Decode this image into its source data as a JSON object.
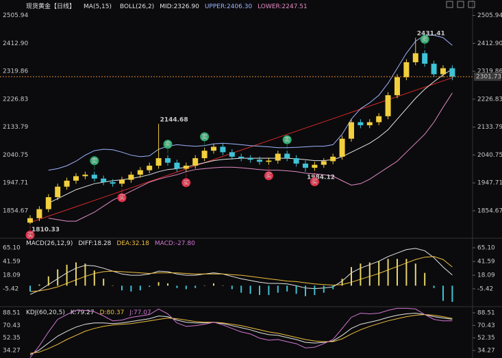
{
  "chart_data": [
    {
      "type": "candlestick",
      "title": "现货黄金【日线】",
      "indicators": [
        "MA(5,15)",
        "BOLL(26,2)"
      ],
      "up_color": "#f2cf3d",
      "down_color": "#3fc3d6",
      "open": [
        1815,
        1830,
        1860,
        1900,
        1935,
        1955,
        1970,
        1975,
        1962,
        1950,
        1945,
        1958,
        1975,
        1990,
        2005,
        2030,
        2015,
        1995,
        2005,
        2030,
        2055,
        2068,
        2050,
        2035,
        2030,
        2025,
        2018,
        2022,
        2045,
        2030,
        2012,
        1998,
        2008,
        2020,
        2035,
        2095,
        2150,
        2140,
        2150,
        2170,
        2240,
        2300,
        2350,
        2380,
        2345,
        2310,
        2330
      ],
      "high": [
        1840,
        1870,
        1910,
        1945,
        1965,
        1980,
        1985,
        1985,
        1972,
        1960,
        1968,
        1985,
        2000,
        2015,
        2144.68,
        2040,
        2025,
        2015,
        2040,
        2065,
        2078,
        2078,
        2060,
        2045,
        2040,
        2035,
        2032,
        2055,
        2055,
        2040,
        2022,
        2018,
        2030,
        2045,
        2105,
        2160,
        2160,
        2160,
        2180,
        2250,
        2310,
        2360,
        2431.41,
        2390,
        2355,
        2340,
        2340
      ],
      "low": [
        1810.33,
        1820,
        1850,
        1890,
        1925,
        1945,
        1960,
        1952,
        1940,
        1935,
        1935,
        1948,
        1965,
        1980,
        1995,
        2005,
        1985,
        1985,
        1995,
        2020,
        2045,
        2040,
        2025,
        2020,
        2015,
        2008,
        2008,
        2012,
        2020,
        2002,
        1984.12,
        1988,
        1998,
        2010,
        2025,
        2085,
        2130,
        2130,
        2140,
        2160,
        2230,
        2290,
        2340,
        2335,
        2300,
        2300,
        2290
      ],
      "close": [
        1830,
        1860,
        1900,
        1935,
        1955,
        1970,
        1975,
        1962,
        1950,
        1945,
        1958,
        1975,
        1990,
        2005,
        2030,
        2015,
        1995,
        2005,
        2030,
        2055,
        2068,
        2050,
        2035,
        2030,
        2025,
        2018,
        2022,
        2045,
        2030,
        2012,
        1998,
        2008,
        2020,
        2035,
        2095,
        2150,
        2140,
        2150,
        2170,
        2240,
        2300,
        2350,
        2380,
        2345,
        2310,
        2330,
        2301.73
      ],
      "series": [
        {
          "name": "MID:2326.90",
          "color": "#e6e6e6",
          "values": [
            null,
            null,
            1880,
            1895,
            1910,
            1925,
            1935,
            1945,
            1950,
            1955,
            1958,
            1962,
            1968,
            1975,
            1985,
            1992,
            1995,
            2000,
            2008,
            2015,
            2022,
            2026,
            2028,
            2030,
            2030,
            2030,
            2030,
            2030,
            2030,
            2028,
            2025,
            2022,
            2022,
            2025,
            2035,
            2050,
            2065,
            2080,
            2100,
            2125,
            2160,
            2195,
            2230,
            2260,
            2285,
            2308,
            2326.9
          ]
        },
        {
          "name": "UPPER:2406.30",
          "color": "#9fb4ff",
          "values": [
            null,
            null,
            1990,
            1995,
            2005,
            2020,
            2040,
            2055,
            2060,
            2058,
            2050,
            2040,
            2035,
            2038,
            2060,
            2070,
            2075,
            2072,
            2070,
            2072,
            2078,
            2080,
            2078,
            2075,
            2072,
            2070,
            2068,
            2065,
            2065,
            2066,
            2068,
            2070,
            2070,
            2075,
            2110,
            2160,
            2195,
            2215,
            2240,
            2280,
            2330,
            2380,
            2420,
            2440,
            2440,
            2432,
            2406.3
          ]
        },
        {
          "name": "LOWER:2247.51",
          "color": "#e48cc6",
          "values": [
            null,
            null,
            1830,
            1825,
            1820,
            1820,
            1835,
            1850,
            1870,
            1890,
            1905,
            1920,
            1935,
            1950,
            1960,
            1968,
            1975,
            1985,
            1992,
            1995,
            1998,
            2000,
            2000,
            1998,
            1995,
            1992,
            1990,
            1990,
            1988,
            1985,
            1980,
            1978,
            1975,
            1970,
            1955,
            1940,
            1945,
            1960,
            1980,
            2000,
            2020,
            2050,
            2080,
            2110,
            2150,
            2200,
            2247.51
          ]
        }
      ],
      "current_price": 2301.73,
      "current_color": "#e08a2c",
      "buy_label": "买",
      "sell_label": "卖",
      "ylim": [
        1770,
        2521
      ],
      "yticks": [
        2505.94,
        {
          "value": 2412.9,
          "label": "2412.90"
        },
        2319.86,
        2226.83,
        2133.79,
        2040.75,
        1947.71,
        1854.67
      ]
    },
    {
      "type": "macd",
      "title": "MACD(26,12,9)",
      "up_color": "#e8d66a",
      "down_color": "#3fc3d6",
      "series": [
        {
          "name": "DIFF:18.28",
          "color": "#e6e6e6",
          "values": [
            -15,
            -8,
            2,
            12,
            22,
            30,
            35,
            34,
            30,
            25,
            20,
            18,
            18,
            20,
            25,
            24,
            20,
            18,
            18,
            20,
            22,
            20,
            16,
            12,
            9,
            6,
            4,
            4,
            3,
            0,
            -4,
            -5,
            -4,
            -2,
            8,
            22,
            30,
            36,
            42,
            50,
            56,
            62,
            64,
            60,
            48,
            32,
            18.28
          ]
        },
        {
          "name": "DEA:32.18",
          "color": "#f0c040",
          "values": [
            -10,
            -9,
            -6,
            -2,
            4,
            10,
            16,
            21,
            24,
            25,
            24,
            23,
            22,
            21,
            22,
            22,
            22,
            21,
            20,
            20,
            20,
            20,
            19,
            18,
            16,
            14,
            12,
            10,
            8,
            7,
            5,
            3,
            2,
            1,
            2,
            6,
            11,
            16,
            21,
            27,
            33,
            39,
            45,
            49,
            50,
            45,
            32.18
          ]
        },
        {
          "name": "MACD:-27.80",
          "color": "#d377d3",
          "kind": "bar",
          "values": [
            -10,
            2,
            16,
            28,
            36,
            40,
            38,
            26,
            12,
            0,
            -8,
            -10,
            -8,
            -2,
            6,
            4,
            -4,
            -6,
            -4,
            0,
            4,
            0,
            -6,
            -12,
            -14,
            -16,
            -16,
            -12,
            -10,
            -14,
            -18,
            -16,
            -12,
            -6,
            12,
            32,
            38,
            40,
            42,
            46,
            46,
            46,
            38,
            22,
            -4,
            -26,
            -27.8
          ]
        }
      ],
      "ylim": [
        -32.5,
        79.2
      ],
      "yticks": [
        {
          "value": 65.1,
          "label": "65.10"
        },
        41.59,
        18.09,
        -5.42
      ]
    },
    {
      "type": "line",
      "title": "KDJ(60,20,5)",
      "series": [
        {
          "name": "K:79.27",
          "color": "#e6e6e6",
          "values": [
            28,
            35,
            45,
            55,
            62,
            68,
            72,
            74,
            74,
            73,
            74,
            76,
            78,
            80,
            84,
            83,
            78,
            75,
            74,
            74,
            75,
            73,
            70,
            67,
            64,
            60,
            57,
            56,
            53,
            50,
            46,
            45,
            46,
            48,
            56,
            66,
            72,
            75,
            78,
            82,
            85,
            87,
            88,
            86,
            83,
            81,
            79.27
          ]
        },
        {
          "name": "D:80.37",
          "color": "#f0c040",
          "values": [
            30,
            32,
            37,
            43,
            50,
            56,
            62,
            66,
            69,
            71,
            72,
            73,
            75,
            77,
            79,
            81,
            80,
            78,
            76,
            75,
            75,
            74,
            72,
            70,
            67,
            64,
            61,
            59,
            56,
            53,
            50,
            48,
            47,
            47,
            51,
            58,
            64,
            69,
            73,
            77,
            80,
            83,
            85,
            86,
            85,
            83,
            80.37
          ]
        },
        {
          "name": "J:77.07",
          "color": "#d377d3",
          "values": [
            24,
            41,
            61,
            79,
            86,
            92,
            92,
            90,
            84,
            77,
            78,
            82,
            84,
            86,
            94,
            87,
            74,
            69,
            70,
            72,
            75,
            71,
            66,
            61,
            58,
            52,
            49,
            50,
            47,
            44,
            38,
            39,
            44,
            50,
            66,
            82,
            88,
            87,
            88,
            92,
            95,
            95,
            94,
            86,
            79,
            77,
            77.07
          ]
        }
      ],
      "ylim": [
        23.4,
        95.4
      ],
      "yticks": [
        88.51,
        70.43,
        52.35,
        34.27
      ]
    }
  ]
}
